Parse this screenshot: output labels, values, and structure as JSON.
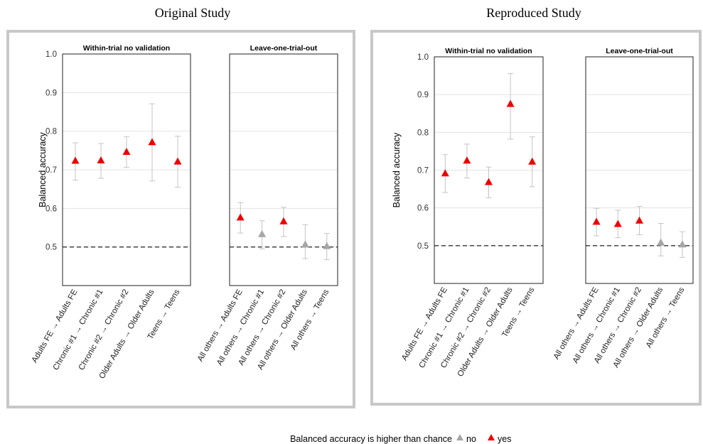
{
  "legend": {
    "title": "Balanced accuracy is higher than chance",
    "items": [
      {
        "label": "no",
        "color": "#a6a6a6"
      },
      {
        "label": "yes",
        "color": "#ee0000"
      }
    ]
  },
  "chart_data": [
    {
      "type": "scatter",
      "title": "Original Study",
      "ylabel": "Balanced accuracy",
      "ylim": [
        0.4,
        1.0
      ],
      "yticks": [
        "0.5",
        "0.6",
        "0.7",
        "0.8",
        "0.9",
        "1.0"
      ],
      "chance_level": 0.5,
      "grid": true,
      "panels": [
        {
          "title": "Within-trial no validation",
          "categories": [
            "Adults FE → Adults FE",
            "Chronic #1 → Chronic #1",
            "Chronic #2 → Chronic #2",
            "Older Adults → Older Adults",
            "Teens → Teens"
          ],
          "values": [
            0.723,
            0.724,
            0.746,
            0.771,
            0.721
          ],
          "lower": [
            0.673,
            0.678,
            0.706,
            0.671,
            0.655
          ],
          "upper": [
            0.77,
            0.768,
            0.786,
            0.871,
            0.787
          ],
          "above_chance": [
            "yes",
            "yes",
            "yes",
            "yes",
            "yes"
          ]
        },
        {
          "title": "Leave-one-trial-out",
          "categories": [
            "All others → Adults FE",
            "All others → Chronic #1",
            "All others → Chronic #2",
            "All others → Older Adults",
            "All others → Teens"
          ],
          "values": [
            0.576,
            0.533,
            0.566,
            0.506,
            0.502
          ],
          "lower": [
            0.536,
            0.495,
            0.527,
            0.47,
            0.467
          ],
          "upper": [
            0.615,
            0.568,
            0.603,
            0.558,
            0.535
          ],
          "above_chance": [
            "yes",
            "no",
            "yes",
            "no",
            "no"
          ]
        }
      ]
    },
    {
      "type": "scatter",
      "title": "Reproduced Study",
      "ylabel": "Balanced accuracy",
      "ylim": [
        0.4,
        1.0
      ],
      "yticks": [
        "0.5",
        "0.6",
        "0.7",
        "0.8",
        "0.9",
        "1.0"
      ],
      "chance_level": 0.5,
      "grid": true,
      "panels": [
        {
          "title": "Within-trial no validation",
          "categories": [
            "Adults FE → Adults FE",
            "Chronic #1 → Chronic #1",
            "Chronic #2 → Chronic #2",
            "Older Adults → Older Adults",
            "Teens → Teens"
          ],
          "values": [
            0.691,
            0.725,
            0.668,
            0.875,
            0.722
          ],
          "lower": [
            0.641,
            0.679,
            0.627,
            0.782,
            0.656
          ],
          "upper": [
            0.741,
            0.769,
            0.708,
            0.956,
            0.788
          ],
          "above_chance": [
            "yes",
            "yes",
            "yes",
            "yes",
            "yes"
          ]
        },
        {
          "title": "Leave-one-trial-out",
          "categories": [
            "All others → Adults FE",
            "All others → Chronic #1",
            "All others → Chronic #2",
            "All others → Older Adults",
            "All others → Teens"
          ],
          "values": [
            0.563,
            0.557,
            0.566,
            0.508,
            0.503
          ],
          "lower": [
            0.526,
            0.521,
            0.529,
            0.473,
            0.469
          ],
          "upper": [
            0.599,
            0.594,
            0.604,
            0.559,
            0.537
          ],
          "above_chance": [
            "yes",
            "yes",
            "yes",
            "no",
            "no"
          ]
        }
      ]
    }
  ]
}
